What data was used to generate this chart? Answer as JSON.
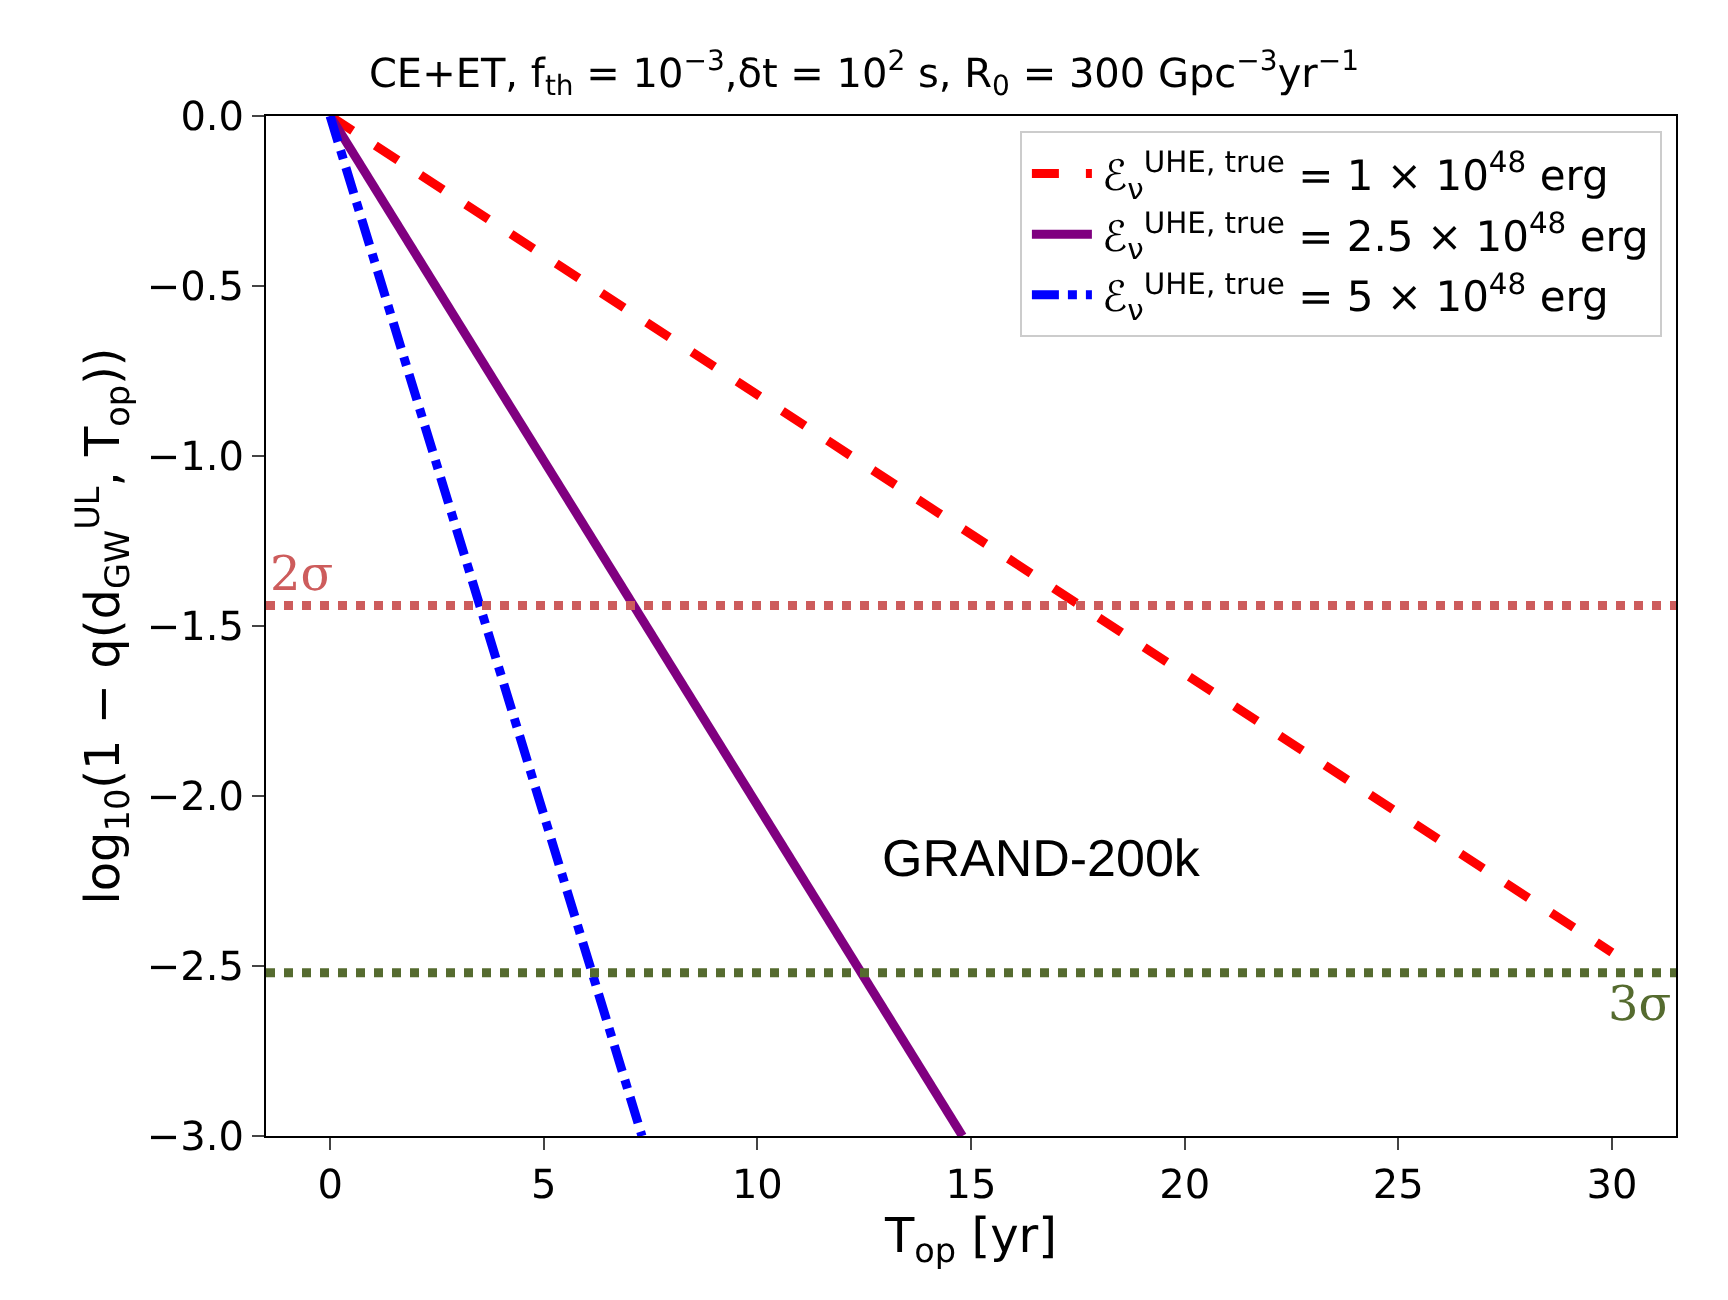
{
  "chart_data": {
    "type": "line",
    "title": "CE+ET, f$_{th}$ = 10$^{−3}$,δt = 10$^{2}$ s, R$_{0}$ = 300 Gpc$^{−3}$yr$^{−1}$",
    "xlabel": "T$_{op}$ [yr]",
    "ylabel": "log$_{10}$(1 − q(d$_{GW}$$^{UL}$, T$_{op}$))",
    "series": [
      {
        "name": "ℰ$_{ν}$$^{UHE, true}$ = 1 × 10$^{48}$ erg",
        "color": "#ff0000",
        "line_style": "dashed",
        "x": [
          0,
          30
        ],
        "values": [
          0,
          -2.46
        ]
      },
      {
        "name": "ℰ$_{ν}$$^{UHE, true}$ = 2.5 × 10$^{48}$ erg",
        "color": "#800080",
        "line_style": "solid",
        "x": [
          0,
          14.8
        ],
        "values": [
          0,
          -3.0
        ]
      },
      {
        "name": "ℰ$_{ν}$$^{UHE, true}$ = 5 × 10$^{48}$ erg",
        "color": "#0000ff",
        "line_style": "dashdot",
        "x": [
          0,
          7.3
        ],
        "values": [
          0,
          -3.0
        ]
      }
    ],
    "ref_lines": [
      {
        "axis": "y",
        "value": -1.44,
        "label": "2σ",
        "color": "#cd5c5c",
        "line_style": "dotted"
      },
      {
        "axis": "y",
        "value": -2.52,
        "label": "3σ",
        "color": "#556b2f",
        "line_style": "dotted"
      }
    ],
    "annotations": [
      "GRAND-200k"
    ],
    "xlim": [
      -1.5,
      31.5
    ],
    "xticks": [
      0,
      5,
      10,
      15,
      20,
      25,
      30
    ],
    "ylim": [
      -3.0,
      0.0
    ],
    "yticks": [
      {
        "value": -3.0,
        "label": "−3.0"
      },
      {
        "value": -2.5,
        "label": "−2.5"
      },
      {
        "value": -2.0,
        "label": "−2.0"
      },
      {
        "value": -1.5,
        "label": "−1.5"
      },
      {
        "value": -1.0,
        "label": "−1.0"
      },
      {
        "value": -0.5,
        "label": "−0.5"
      },
      {
        "value": 0.0,
        "label": "0.0"
      }
    ],
    "legend": "top right",
    "marker": "none"
  }
}
